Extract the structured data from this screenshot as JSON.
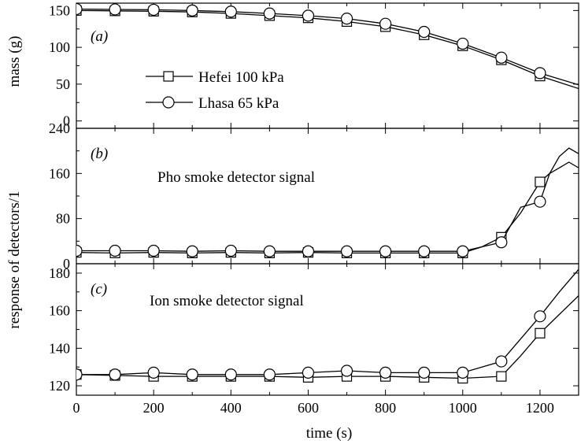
{
  "chart_data": {
    "type": "line",
    "xlabel": "time (s)",
    "ylabel_top": "mass (g)",
    "ylabel_bottom": "response of detectors/1",
    "xlim": [
      0,
      1300
    ],
    "xticks": [
      0,
      200,
      400,
      600,
      800,
      1000,
      1200
    ],
    "legend": {
      "placement": "inside-left",
      "entries": [
        {
          "name": "Hefei 100 kPa",
          "marker": "square"
        },
        {
          "name": "Lhasa 65 kPa",
          "marker": "circle"
        }
      ]
    },
    "panels": [
      {
        "id": "a",
        "letter": "(a)",
        "annotation": "",
        "ylim": [
          -10,
          160
        ],
        "yticks": [
          0,
          50,
          100,
          150
        ],
        "series": [
          {
            "name": "Hefei 100 kPa",
            "marker": "square",
            "x": [
              0,
              100,
              200,
              300,
              400,
              500,
              600,
              700,
              800,
              900,
              1000,
              1100,
              1200,
              1300
            ],
            "y": [
              150,
              149.5,
              149,
              148,
              146,
              143,
              140,
              135,
              128,
              117,
              102,
              83,
              61,
              44
            ]
          },
          {
            "name": "Lhasa 65 kPa",
            "marker": "circle",
            "x": [
              0,
              100,
              200,
              300,
              400,
              500,
              600,
              700,
              800,
              900,
              1000,
              1100,
              1200,
              1300
            ],
            "y": [
              152,
              151.5,
              151,
              150,
              148.5,
              146,
              143,
              139,
              132,
              121,
              105,
              86,
              65,
              49
            ]
          }
        ]
      },
      {
        "id": "b",
        "letter": "(b)",
        "annotation": "Pho smoke detector signal",
        "ylim": [
          0,
          240
        ],
        "yticks": [
          0,
          80,
          160,
          240
        ],
        "series": [
          {
            "name": "Hefei 100 kPa",
            "marker": "square",
            "x": [
              0,
              100,
              200,
              300,
              400,
              500,
              600,
              700,
              800,
              900,
              1000,
              1050,
              1100,
              1150,
              1200,
              1225,
              1250,
              1275,
              1300
            ],
            "y": [
              20,
              19,
              20,
              19,
              20,
              19,
              20,
              19,
              19,
              19,
              19,
              30,
              47,
              90,
              145,
              160,
              190,
              205,
              195
            ]
          },
          {
            "name": "Lhasa 65 kPa",
            "marker": "circle",
            "x": [
              0,
              100,
              200,
              300,
              400,
              500,
              600,
              700,
              800,
              900,
              1000,
              1050,
              1100,
              1150,
              1200,
              1225,
              1250,
              1275,
              1300
            ],
            "y": [
              23,
              23,
              23,
              22,
              23,
              22,
              22,
              22,
              22,
              22,
              22,
              30,
              38,
              100,
              110,
              160,
              170,
              180,
              170
            ]
          }
        ]
      },
      {
        "id": "c",
        "letter": "(c)",
        "annotation": "Ion smoke detector signal",
        "ylim": [
          115,
          185
        ],
        "yticks": [
          120,
          140,
          160,
          180
        ],
        "series": [
          {
            "name": "Hefei 100 kPa",
            "marker": "square",
            "x": [
              0,
              100,
              200,
              300,
              400,
              500,
              600,
              700,
              800,
              900,
              1000,
              1100,
              1150,
              1200,
              1250,
              1300
            ],
            "y": [
              126,
              125.5,
              125,
              125,
              125,
              125,
              124.5,
              125,
              125,
              124.5,
              124,
              125,
              136,
              148,
              158,
              168
            ]
          },
          {
            "name": "Lhasa 65 kPa",
            "marker": "circle",
            "x": [
              0,
              100,
              200,
              300,
              400,
              500,
              600,
              700,
              800,
              900,
              1000,
              1100,
              1150,
              1200,
              1250,
              1300
            ],
            "y": [
              126,
              126,
              127,
              126,
              126,
              126,
              127,
              128,
              127,
              127,
              127,
              133,
              145,
              157,
              170,
              182
            ]
          }
        ]
      }
    ]
  }
}
